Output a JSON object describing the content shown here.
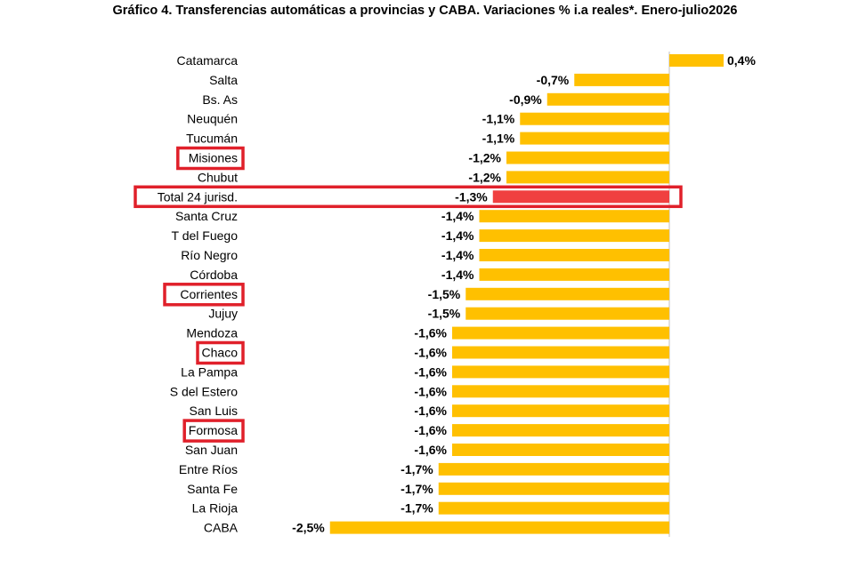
{
  "chart_data": {
    "type": "bar",
    "orientation": "horizontal",
    "title": "Gráfico 4. Transferencias automáticas a provincias y CABA. Variaciones % i.a reales*. Enero-julio2026",
    "categories": [
      "Catamarca",
      "Salta",
      "Bs. As",
      "Neuquén",
      "Tucumán",
      "Misiones",
      "Chubut",
      "Total 24 jurisd.",
      "Santa Cruz",
      "T del Fuego",
      "Río Negro",
      "Córdoba",
      "Corrientes",
      "Jujuy",
      "Mendoza",
      "Chaco",
      "La Pampa",
      "S del Estero",
      "San Luis",
      "Formosa",
      "San Juan",
      "Entre Ríos",
      "Santa Fe",
      "La Rioja",
      "CABA"
    ],
    "values": [
      0.4,
      -0.7,
      -0.9,
      -1.1,
      -1.1,
      -1.2,
      -1.2,
      -1.3,
      -1.4,
      -1.4,
      -1.4,
      -1.4,
      -1.5,
      -1.5,
      -1.6,
      -1.6,
      -1.6,
      -1.6,
      -1.6,
      -1.6,
      -1.6,
      -1.7,
      -1.7,
      -1.7,
      -2.5
    ],
    "value_labels": [
      "0,4%",
      "-0,7%",
      "-0,9%",
      "-1,1%",
      "-1,1%",
      "-1,2%",
      "-1,2%",
      "-1,3%",
      "-1,4%",
      "-1,4%",
      "-1,4%",
      "-1,4%",
      "-1,5%",
      "-1,5%",
      "-1,6%",
      "-1,6%",
      "-1,6%",
      "-1,6%",
      "-1,6%",
      "-1,6%",
      "-1,6%",
      "-1,7%",
      "-1,7%",
      "-1,7%",
      "-2,5%"
    ],
    "highlighted_categories": [
      "Misiones",
      "Total 24 jurisd.",
      "Corrientes",
      "Chaco",
      "Formosa"
    ],
    "total_row": "Total 24 jurisd.",
    "colors": {
      "bar": "#FFC000",
      "total_bar": "#F04040",
      "highlight_box": "#E0202A"
    },
    "grid": false,
    "legend": "none"
  }
}
